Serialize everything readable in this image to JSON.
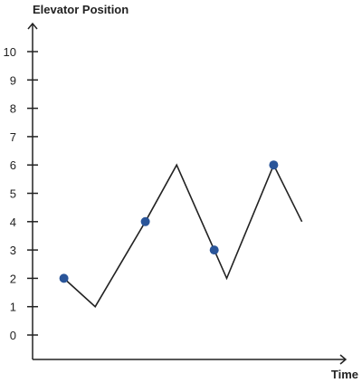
{
  "chart_data": {
    "type": "line",
    "ylabel": "Elevator Position",
    "xlabel": "Time",
    "yticks": [
      "0",
      "1",
      "2",
      "3",
      "4",
      "5",
      "6",
      "7",
      "8",
      "9",
      "10"
    ],
    "ylim": [
      0,
      10
    ],
    "xlim": [
      0,
      10
    ],
    "grid": false,
    "series": [
      {
        "x": [
          1.0,
          2.0,
          3.6,
          4.6,
          5.8,
          6.2,
          7.7,
          8.6
        ],
        "y": [
          2,
          1,
          4,
          6,
          3,
          2,
          6,
          4
        ]
      }
    ],
    "markers": {
      "x": [
        1.0,
        3.6,
        5.8,
        7.7
      ],
      "y": [
        2,
        4,
        3,
        6
      ]
    },
    "colors": {
      "line": "#222222",
      "marker": "#2a5599",
      "axis": "#222222"
    }
  }
}
